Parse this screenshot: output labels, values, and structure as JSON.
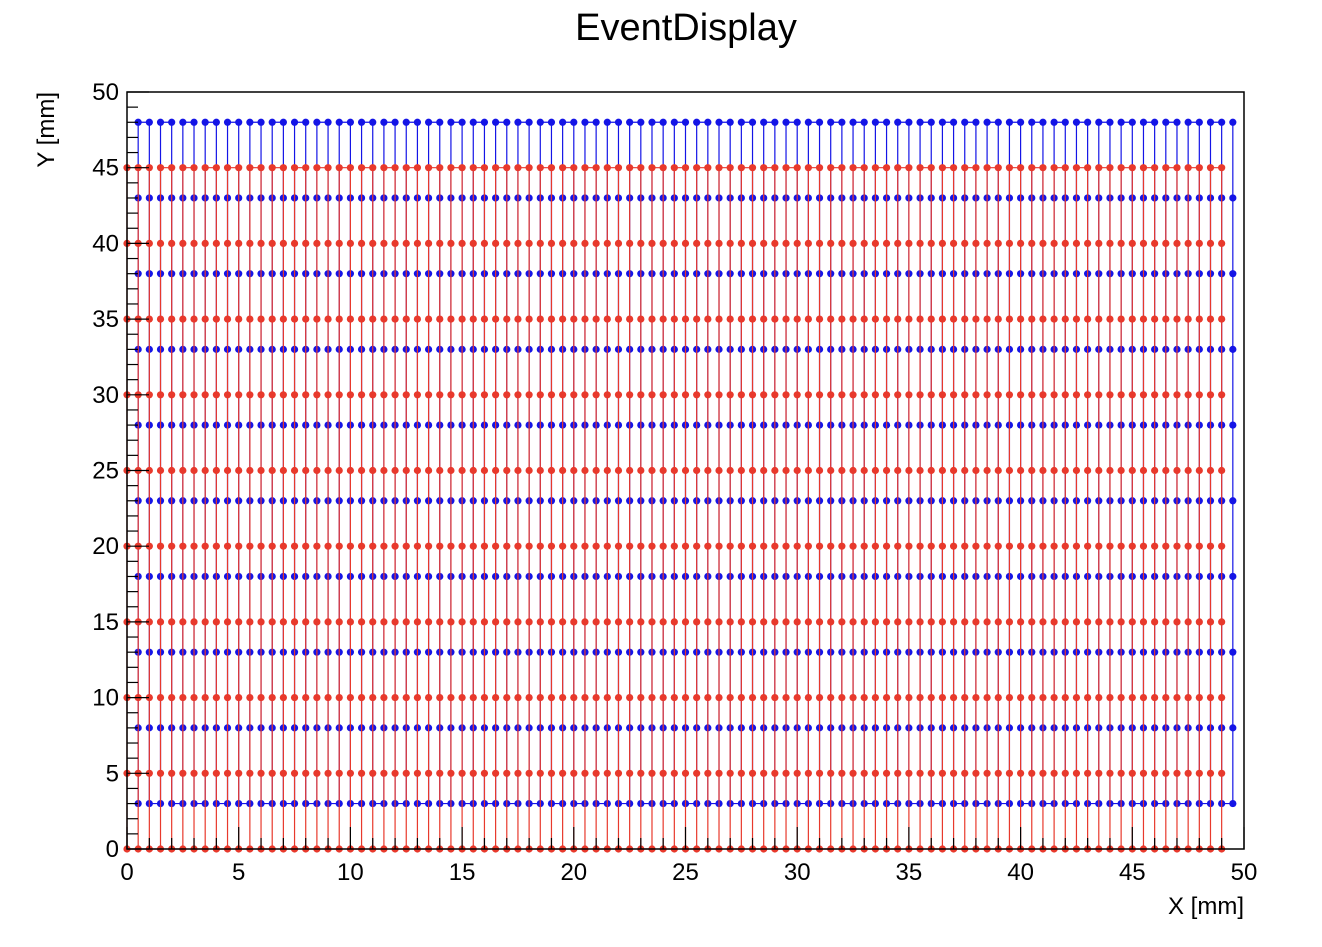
{
  "chart_data": {
    "type": "line",
    "title": "EventDisplay",
    "xlabel": "X [mm]",
    "ylabel": "Y [mm]",
    "xlim": [
      0,
      50
    ],
    "ylim": [
      0,
      50
    ],
    "x_ticks": [
      "0",
      "5",
      "10",
      "15",
      "20",
      "25",
      "30",
      "35",
      "40",
      "45",
      "50"
    ],
    "y_ticks": [
      "0",
      "5",
      "10",
      "15",
      "20",
      "25",
      "30",
      "35",
      "40",
      "45",
      "50"
    ],
    "grid": false,
    "legend": null,
    "markers": true,
    "series": [
      {
        "color": "#1414e6",
        "pattern": "zigzag",
        "x_start": 0.5,
        "x_end": 49.5,
        "x_step": 0.5,
        "columns": 99,
        "y_levels": [
          3,
          8,
          13,
          18,
          23,
          28,
          33,
          38,
          43,
          48
        ],
        "first_column_direction": "up"
      },
      {
        "color": "#e8392c",
        "pattern": "zigzag",
        "x_start": 0,
        "x_end": 49,
        "x_step": 0.5,
        "columns": 99,
        "y_levels": [
          0,
          5,
          10,
          15,
          20,
          25,
          30,
          35,
          40,
          45
        ],
        "first_column_direction": "down"
      }
    ]
  }
}
